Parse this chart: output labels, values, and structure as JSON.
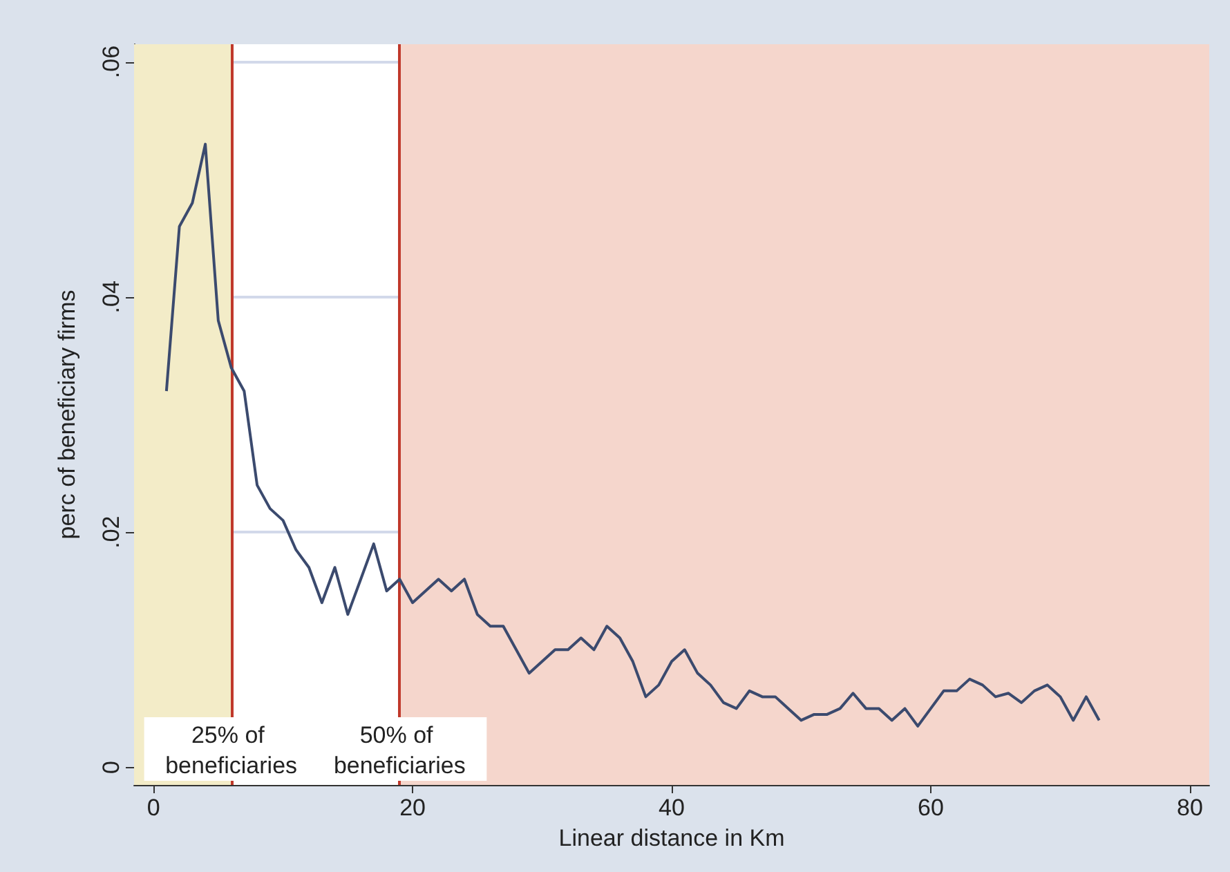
{
  "chart_data": {
    "type": "line",
    "xlabel": "Linear distance in Km",
    "ylabel": "perc of beneficiary firms",
    "x": [
      1,
      2,
      3,
      4,
      5,
      6,
      7,
      8,
      9,
      10,
      11,
      12,
      13,
      14,
      15,
      16,
      17,
      18,
      19,
      20,
      21,
      22,
      23,
      24,
      25,
      26,
      27,
      28,
      29,
      30,
      31,
      32,
      33,
      34,
      35,
      36,
      37,
      38,
      39,
      40,
      41,
      42,
      43,
      44,
      45,
      46,
      47,
      48,
      49,
      50,
      51,
      52,
      53,
      54,
      55,
      56,
      57,
      58,
      59,
      60,
      61,
      62,
      63,
      64,
      65,
      66,
      67,
      68,
      69,
      70,
      71,
      72,
      73
    ],
    "series": [
      {
        "color": "#3b4a6e",
        "values": [
          0.032,
          0.046,
          0.048,
          0.053,
          0.038,
          0.034,
          0.032,
          0.024,
          0.022,
          0.021,
          0.0185,
          0.017,
          0.014,
          0.017,
          0.013,
          0.016,
          0.019,
          0.015,
          0.016,
          0.014,
          0.015,
          0.016,
          0.015,
          0.016,
          0.013,
          0.012,
          0.012,
          0.01,
          0.008,
          0.009,
          0.01,
          0.01,
          0.011,
          0.01,
          0.012,
          0.011,
          0.009,
          0.006,
          0.007,
          0.009,
          0.01,
          0.008,
          0.007,
          0.0055,
          0.005,
          0.0065,
          0.006,
          0.006,
          0.005,
          0.004,
          0.0045,
          0.0045,
          0.005,
          0.0063,
          0.005,
          0.005,
          0.004,
          0.005,
          0.0035,
          0.005,
          0.0065,
          0.0065,
          0.0075,
          0.007,
          0.006,
          0.0063,
          0.0055,
          0.0065,
          0.007,
          0.006,
          0.004,
          0.006,
          0.004
        ]
      }
    ],
    "xlim": [
      -1.5,
      81.5
    ],
    "xticks": [
      0,
      20,
      40,
      60,
      80
    ],
    "ylim": [
      -0.0015,
      0.0615
    ],
    "yticks": [
      {
        "value": 0,
        "label": "0"
      },
      {
        "value": 0.02,
        "label": ".02"
      },
      {
        "value": 0.04,
        "label": ".04"
      },
      {
        "value": 0.06,
        "label": ".06"
      }
    ],
    "bands": [
      {
        "axis": "x",
        "from": -1.5,
        "to": 6,
        "color": "#f3ecc8"
      },
      {
        "axis": "x",
        "from": 19,
        "to": 81.5,
        "color": "#f5d6cc"
      }
    ],
    "ref_lines": [
      {
        "axis": "x",
        "value": 6,
        "label": "25% of beneficiaries",
        "color": "#c0392b"
      },
      {
        "axis": "x",
        "value": 19,
        "label": "50% of beneficiaries",
        "color": "#c0392b"
      }
    ],
    "grid": "y",
    "marker": "none",
    "line_style": "solid"
  }
}
